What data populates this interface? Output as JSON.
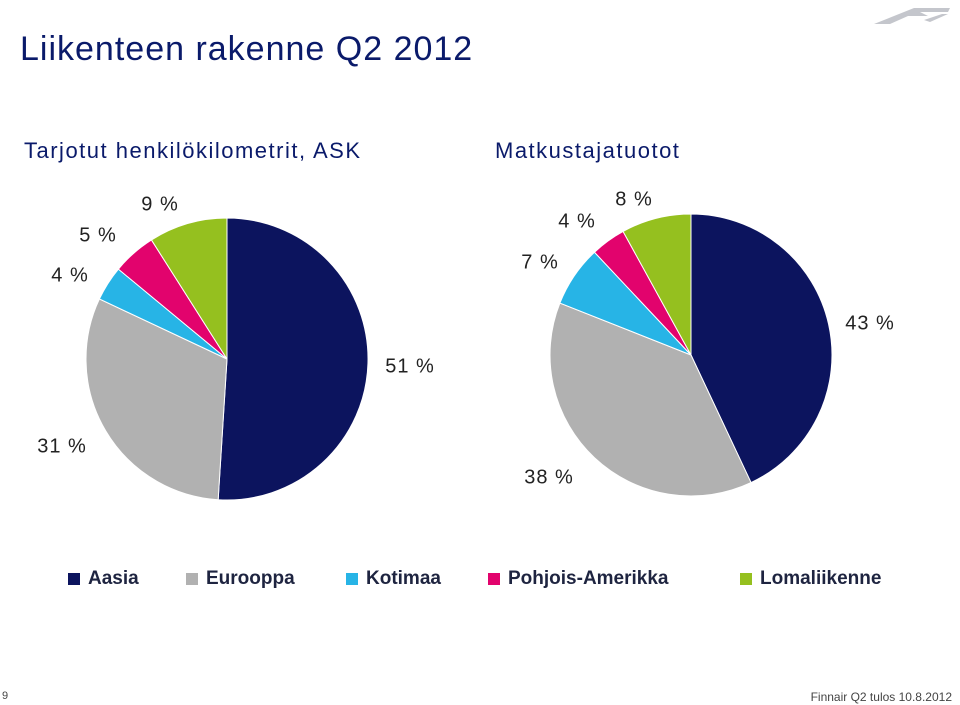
{
  "slide": {
    "title": "Liikenteen rakenne Q2 2012",
    "page_number": "9",
    "footer": "Finnair Q2 tulos 10.8.2012",
    "logo_icon": "finnair-logo-icon"
  },
  "chart_data": [
    {
      "type": "pie",
      "title": "Tarjotut henkilökilometrit, ASK",
      "categories": [
        "Aasia",
        "Eurooppa",
        "Kotimaa",
        "Pohjois-Amerikka",
        "Lomaliikenne"
      ],
      "values": [
        51,
        31,
        4,
        5,
        9
      ],
      "labels": [
        "51 %",
        "31 %",
        "4 %",
        "5 %",
        "9 %"
      ],
      "colors": [
        "#0c145e",
        "#b1b1b1",
        "#27b4e6",
        "#e2036d",
        "#95c01f"
      ]
    },
    {
      "type": "pie",
      "title": "Matkustajatuotot",
      "categories": [
        "Aasia",
        "Eurooppa",
        "Kotimaa",
        "Pohjois-Amerikka",
        "Lomaliikenne"
      ],
      "values": [
        43,
        38,
        7,
        4,
        8
      ],
      "labels": [
        "43 %",
        "38 %",
        "7 %",
        "4 %",
        "8 %"
      ],
      "colors": [
        "#0c145e",
        "#b1b1b1",
        "#27b4e6",
        "#e2036d",
        "#95c01f"
      ]
    }
  ],
  "legend": {
    "placement": "bottom",
    "items": [
      {
        "label": "Aasia",
        "color": "#0c145e"
      },
      {
        "label": "Eurooppa",
        "color": "#b1b1b1"
      },
      {
        "label": "Kotimaa",
        "color": "#27b4e6"
      },
      {
        "label": "Pohjois-Amerikka",
        "color": "#e2036d"
      },
      {
        "label": "Lomaliikenne",
        "color": "#95c01f"
      }
    ]
  }
}
